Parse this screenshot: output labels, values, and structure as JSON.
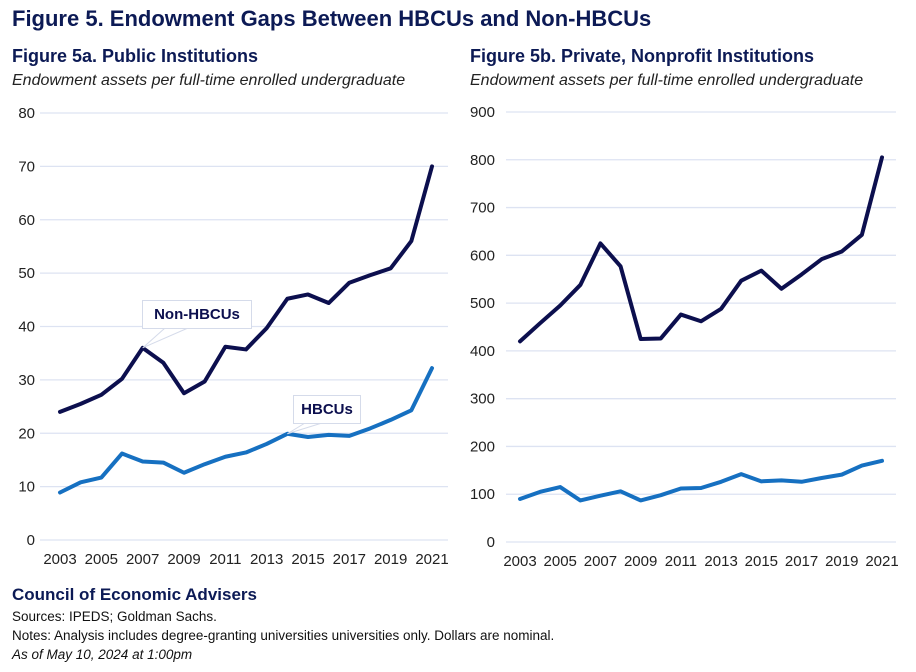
{
  "title": "Figure 5. Endowment Gaps Between HBCUs and Non-HBCUs",
  "footer": {
    "org": "Council of Economic Advisers",
    "sources": "Sources: IPEDS; Goldman Sachs.",
    "notes": "Notes: Analysis includes degree-granting universities universities only. Dollars are nominal.",
    "date": "As of May 10, 2024 at 1:00pm"
  },
  "colors": {
    "non_hbcu": "#0c0f4e",
    "hbcu": "#1670c1",
    "grid": "#dde3f2"
  },
  "chart_data": [
    {
      "type": "line",
      "title": "Figure 5a. Public Institutions",
      "subtitle": "Endowment assets per full-time enrolled undergraduate",
      "ylim": [
        0,
        80
      ],
      "yticks": [
        "0",
        "10",
        "20",
        "30",
        "40",
        "50",
        "60",
        "70",
        "80"
      ],
      "xticks": [
        "2003",
        "2005",
        "2007",
        "2009",
        "2011",
        "2013",
        "2015",
        "2017",
        "2019",
        "2021"
      ],
      "grid": true,
      "x": [
        2003,
        2004,
        2005,
        2006,
        2007,
        2008,
        2009,
        2010,
        2011,
        2012,
        2013,
        2014,
        2015,
        2016,
        2017,
        2018,
        2019,
        2020,
        2021
      ],
      "series": [
        {
          "name": "Non-HBCUs",
          "values": [
            24,
            25.5,
            27.2,
            30.2,
            36,
            33.2,
            27.5,
            29.7,
            36.2,
            35.7,
            39.7,
            45.2,
            46,
            44.4,
            48.2,
            49.6,
            50.9,
            56,
            70
          ]
        },
        {
          "name": "HBCUs",
          "values": [
            8.9,
            10.8,
            11.7,
            16.2,
            14.7,
            14.5,
            12.6,
            14.2,
            15.6,
            16.4,
            18,
            19.9,
            19.3,
            19.7,
            19.5,
            20.9,
            22.5,
            24.3,
            32.2
          ]
        }
      ]
    },
    {
      "type": "line",
      "title": "Figure 5b. Private, Nonprofit Institutions",
      "subtitle": "Endowment assets per full-time enrolled undergraduate",
      "ylim": [
        0,
        900
      ],
      "yticks": [
        "0",
        "100",
        "200",
        "300",
        "400",
        "500",
        "600",
        "700",
        "800",
        "900"
      ],
      "xticks": [
        "2003",
        "2005",
        "2007",
        "2009",
        "2011",
        "2013",
        "2015",
        "2017",
        "2019",
        "2021"
      ],
      "grid": true,
      "x": [
        2003,
        2004,
        2005,
        2006,
        2007,
        2008,
        2009,
        2010,
        2011,
        2012,
        2013,
        2014,
        2015,
        2016,
        2017,
        2018,
        2019,
        2020,
        2021
      ],
      "series": [
        {
          "values": [
            420,
            458,
            495,
            538,
            625,
            577,
            425,
            426,
            476,
            462,
            488,
            547,
            568,
            530,
            560,
            592,
            608,
            643,
            805
          ]
        },
        {
          "values": [
            90,
            105,
            115,
            87,
            97,
            106,
            87,
            98,
            112,
            113,
            126,
            142,
            127,
            129,
            126,
            134,
            141,
            160,
            170
          ]
        }
      ]
    }
  ]
}
